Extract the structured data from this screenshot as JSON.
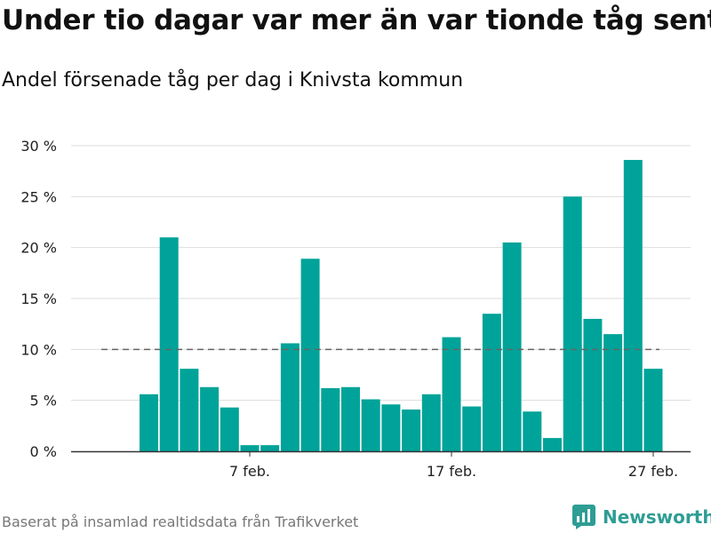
{
  "title": "Under tio dagar var mer än var tionde tåg sent",
  "subtitle": "Andel försenade tåg per dag i Knivsta kommun",
  "source": "Baserat på insamlad realtidsdata från Trafikverket",
  "brand": {
    "name": "Newsworthy",
    "icon": "newsworthy-logo-icon",
    "color": "#2e9d94"
  },
  "chart_data": {
    "type": "bar",
    "x": [
      "2 feb.",
      "3 feb.",
      "4 feb.",
      "5 feb.",
      "6 feb.",
      "7 feb.",
      "8 feb.",
      "9 feb.",
      "10 feb.",
      "11 feb.",
      "12 feb.",
      "13 feb.",
      "14 feb.",
      "15 feb.",
      "16 feb.",
      "17 feb.",
      "18 feb.",
      "19 feb.",
      "20 feb.",
      "21 feb.",
      "22 feb.",
      "23 feb.",
      "24 feb.",
      "25 feb.",
      "26 feb.",
      "27 feb."
    ],
    "values": [
      5.6,
      21.0,
      8.1,
      6.3,
      4.3,
      0.6,
      0.6,
      10.6,
      18.9,
      6.2,
      6.3,
      5.1,
      4.6,
      4.1,
      5.6,
      11.2,
      4.4,
      13.5,
      20.5,
      3.9,
      1.3,
      25.0,
      13.0,
      11.5,
      28.6,
      8.1
    ],
    "x_tick_labels": [
      "7 feb.",
      "17 feb.",
      "27 feb."
    ],
    "y_ticks": [
      0,
      5,
      10,
      15,
      20,
      25,
      30
    ],
    "y_tick_suffix": " %",
    "ylim": [
      0,
      30
    ],
    "reference_line": {
      "value": 10,
      "style": "dashed",
      "color": "#666666"
    },
    "bar_color": "#00a399",
    "grid": true,
    "xlabel": "",
    "ylabel": ""
  }
}
